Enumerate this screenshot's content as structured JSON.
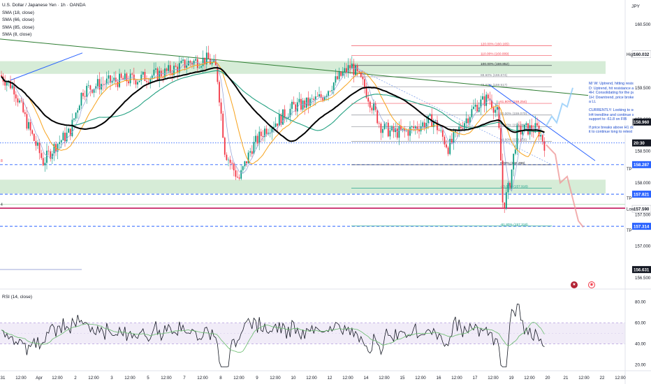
{
  "header": {
    "title": "U.S. Dollar / Japanese Yen · 1h · OANDA",
    "indicators": [
      "SMA (18, close)",
      "SMA (66, close)",
      "SMA (85, close)",
      "SMA (8, close)"
    ],
    "currency": "JPY"
  },
  "rsi": {
    "label": "RSI (14, close)"
  },
  "note": {
    "paragraphs": [
      "M/ W: Uptrend, hitting resistance and",
      "D: Uptrend, hit resistance and co",
      "4H: Consolidating for the past 4 w",
      "1H: Downtrend, price broke below",
      "a LL",
      "CURRENTLY: Looking to see if pri",
      "H4 trendline and continue short",
      "support to -61.8 on FIB",
      "If price breaks above H1 downtre",
      "it to continue long to retest H4 d"
    ]
  },
  "colors": {
    "up": "#089981",
    "down": "#f23645",
    "sma18": "#f7a21b",
    "sma66": "#000000",
    "sma85": "#22a081",
    "sma8": "#9aa7d9",
    "zone": "#c8e6c9",
    "trend": "#2962ff"
  },
  "chart_data": {
    "type": "candlestick",
    "title": "U.S. Dollar / Japanese Yen · 1h · OANDA",
    "x_tick_labels": [
      "31",
      "12:00",
      "Apr",
      "12:00",
      "2",
      "12:00",
      "3",
      "12:00",
      "5",
      "12:00",
      "7",
      "12:00",
      "8",
      "12:00",
      "9",
      "12:00",
      "10",
      "12:00",
      "12",
      "12:00",
      "14",
      "12:00",
      "15",
      "12:00",
      "16",
      "12:00",
      "17",
      "12:00",
      "19",
      "12:00",
      "20",
      "21",
      "12:00",
      "22",
      "12:00"
    ],
    "y_ticks": [
      160.5,
      160.0,
      159.5,
      159.0,
      158.5,
      158.0,
      157.5,
      157.0,
      156.5
    ],
    "ylim": [
      156.45,
      160.75
    ],
    "price_labels": [
      {
        "text": "160.032",
        "tag": "High",
        "value": 160.032,
        "color": "#ffffff",
        "fg": "#131722"
      },
      {
        "text": "158.960",
        "tag": "",
        "value": 158.96,
        "color": "#131722",
        "fg": "#ffffff"
      },
      {
        "text": "20:30",
        "tag": "",
        "value": 158.63,
        "color": "#131722",
        "fg": "#ffffff"
      },
      {
        "text": "158.287",
        "tag": "TP",
        "value": 158.287,
        "color": "#2962ff",
        "fg": "#ffffff"
      },
      {
        "text": "157.821",
        "tag": "TP",
        "value": 157.821,
        "color": "#2962ff",
        "fg": "#ffffff"
      },
      {
        "text": "157.590",
        "tag": "Low",
        "value": 157.59,
        "color": "#ffffff",
        "fg": "#131722"
      },
      {
        "text": "157.314",
        "tag": "TP",
        "value": 157.314,
        "color": "#2962ff",
        "fg": "#ffffff"
      },
      {
        "text": "156.631",
        "tag": "",
        "value": 156.631,
        "color": "#131722",
        "fg": "#ffffff"
      }
    ],
    "fib_levels": [
      {
        "label": "120.00% (160.165)",
        "value": 160.165,
        "color": "#f23645"
      },
      {
        "label": "110.00% (160.009)",
        "value": 160.009,
        "color": "#f23645"
      },
      {
        "label": "100.00% (159.852)",
        "value": 159.852,
        "color": "#131722"
      },
      {
        "label": "88.60% (159.674)",
        "value": 159.674,
        "color": "#787b86"
      },
      {
        "label": "78.60% (159.517)",
        "value": 159.517,
        "color": "#787b86"
      },
      {
        "label": "61.80% (159.254)",
        "value": 159.254,
        "color": "#f23645"
      },
      {
        "label": "50.00% (159.070)",
        "value": 159.07,
        "color": "#787b86"
      },
      {
        "label": "38.20% (158.885)",
        "value": 158.885,
        "color": "#787b86"
      },
      {
        "label": "23.60% (158.656)",
        "value": 158.656,
        "color": "#787b86"
      },
      {
        "label": "0.00% (158.286)",
        "value": 158.286,
        "color": "#131722"
      },
      {
        "label": "-23.60% (157.916)",
        "value": 157.916,
        "color": "#089981"
      },
      {
        "label": "-61.80% (157.318)",
        "value": 157.318,
        "color": "#089981"
      }
    ],
    "zones": [
      {
        "from": 159.72,
        "to": 159.92
      },
      {
        "from": 157.83,
        "to": 158.05
      }
    ],
    "horizontal_lines": [
      {
        "value": 158.63,
        "style": "dotted",
        "color": "#2962ff"
      },
      {
        "value": 158.287,
        "style": "dashed",
        "color": "#2962ff"
      },
      {
        "value": 157.821,
        "style": "dashed",
        "color": "#2962ff"
      },
      {
        "value": 157.6,
        "style": "solid",
        "color": "#c2185b"
      },
      {
        "value": 157.314,
        "style": "dashed",
        "color": "#2962ff"
      }
    ],
    "rsi_ticks": [
      80,
      60,
      40,
      20
    ],
    "rsi_ylim": [
      15,
      85
    ]
  }
}
